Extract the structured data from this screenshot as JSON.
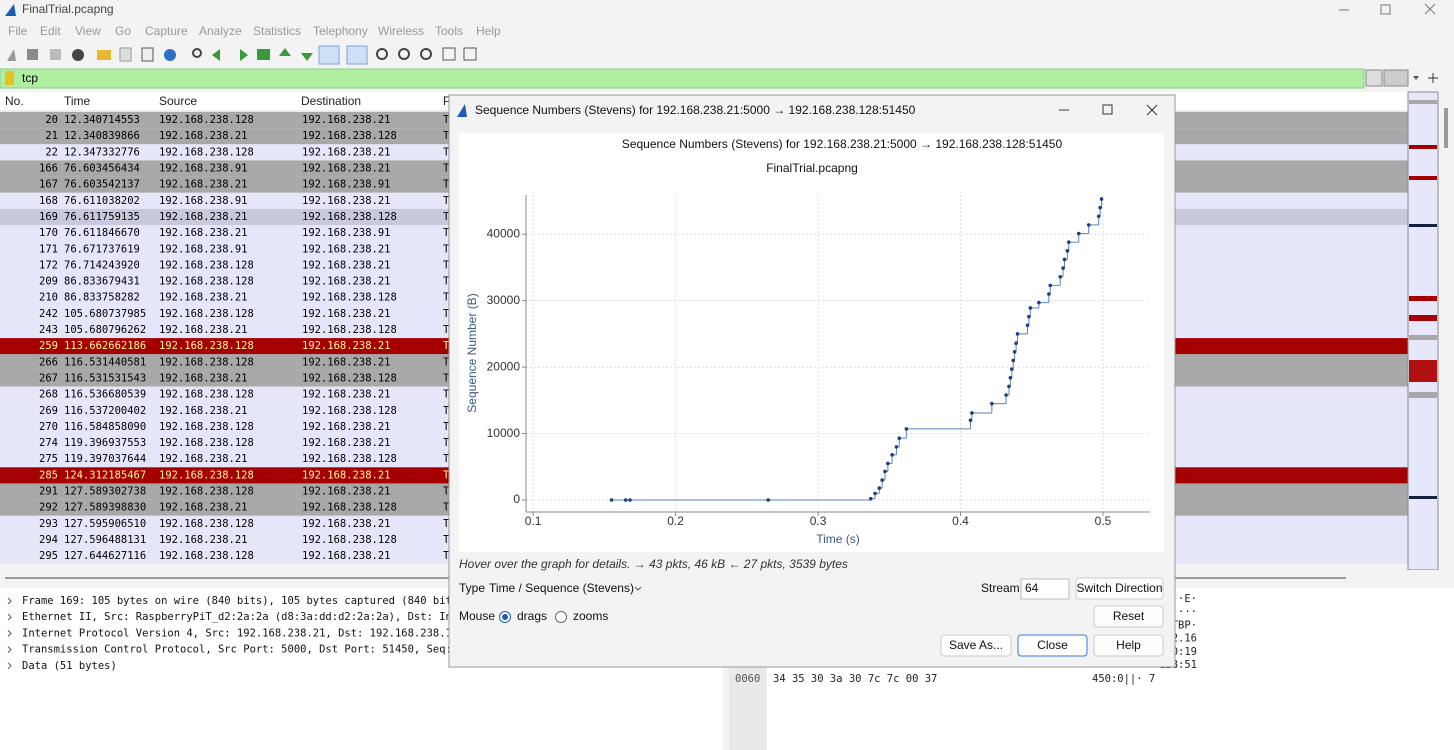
{
  "window": {
    "title": "FinalTrial.pcapng"
  },
  "menu": [
    "File",
    "Edit",
    "View",
    "Go",
    "Capture",
    "Analyze",
    "Statistics",
    "Telephony",
    "Wireless",
    "Tools",
    "Help"
  ],
  "filter": {
    "text": "tcp"
  },
  "packet_list": {
    "columns": [
      "No.",
      "Time",
      "Source",
      "Destination",
      "P"
    ],
    "row_styles": {
      "gray": {
        "color": "#a8a8a8",
        "text_color": "#000000"
      },
      "normal": {
        "color": "#e6e6fb",
        "text_color": "#000000"
      },
      "selected": {
        "color": "#c9c9dd",
        "text_color": "#000000"
      },
      "red": {
        "color": "#a40000",
        "text_color": "#fffc9c"
      }
    },
    "rows": [
      {
        "no": 20,
        "time": "12.340714553",
        "source": "192.168.238.128",
        "destination": "192.168.238.21",
        "protocol": "TCP",
        "style": "gray"
      },
      {
        "no": 21,
        "time": "12.340839866",
        "source": "192.168.238.21",
        "destination": "192.168.238.128",
        "protocol": "TCP",
        "style": "gray"
      },
      {
        "no": 22,
        "time": "12.347332776",
        "source": "192.168.238.128",
        "destination": "192.168.238.21",
        "protocol": "TCP",
        "style": "normal"
      },
      {
        "no": 166,
        "time": "76.603456434",
        "source": "192.168.238.91",
        "destination": "192.168.238.21",
        "protocol": "TCP",
        "style": "gray"
      },
      {
        "no": 167,
        "time": "76.603542137",
        "source": "192.168.238.21",
        "destination": "192.168.238.91",
        "protocol": "TCP",
        "style": "gray"
      },
      {
        "no": 168,
        "time": "76.611038202",
        "source": "192.168.238.91",
        "destination": "192.168.238.21",
        "protocol": "TCP",
        "style": "normal"
      },
      {
        "no": 169,
        "time": "76.611759135",
        "source": "192.168.238.21",
        "destination": "192.168.238.128",
        "protocol": "TCP",
        "style": "selected"
      },
      {
        "no": 170,
        "time": "76.611846670",
        "source": "192.168.238.21",
        "destination": "192.168.238.91",
        "protocol": "TCP",
        "style": "normal"
      },
      {
        "no": 171,
        "time": "76.671737619",
        "source": "192.168.238.91",
        "destination": "192.168.238.21",
        "protocol": "TCP",
        "style": "normal"
      },
      {
        "no": 172,
        "time": "76.714243920",
        "source": "192.168.238.128",
        "destination": "192.168.238.21",
        "protocol": "TCP",
        "style": "normal"
      },
      {
        "no": 209,
        "time": "86.833679431",
        "source": "192.168.238.128",
        "destination": "192.168.238.21",
        "protocol": "TCP",
        "style": "normal"
      },
      {
        "no": 210,
        "time": "86.833758282",
        "source": "192.168.238.21",
        "destination": "192.168.238.128",
        "protocol": "TCP",
        "style": "normal"
      },
      {
        "no": 242,
        "time": "105.680737985",
        "source": "192.168.238.128",
        "destination": "192.168.238.21",
        "protocol": "TCP",
        "style": "normal"
      },
      {
        "no": 243,
        "time": "105.680796262",
        "source": "192.168.238.21",
        "destination": "192.168.238.128",
        "protocol": "TCP",
        "style": "normal"
      },
      {
        "no": 259,
        "time": "113.662662186",
        "source": "192.168.238.128",
        "destination": "192.168.238.21",
        "protocol": "TCP",
        "style": "red"
      },
      {
        "no": 266,
        "time": "116.531440581",
        "source": "192.168.238.128",
        "destination": "192.168.238.21",
        "protocol": "TCP",
        "style": "gray"
      },
      {
        "no": 267,
        "time": "116.531531543",
        "source": "192.168.238.21",
        "destination": "192.168.238.128",
        "protocol": "TCP",
        "style": "gray"
      },
      {
        "no": 268,
        "time": "116.536680539",
        "source": "192.168.238.128",
        "destination": "192.168.238.21",
        "protocol": "TCP",
        "style": "normal"
      },
      {
        "no": 269,
        "time": "116.537200402",
        "source": "192.168.238.21",
        "destination": "192.168.238.128",
        "protocol": "TCP",
        "style": "normal"
      },
      {
        "no": 270,
        "time": "116.584858090",
        "source": "192.168.238.128",
        "destination": "192.168.238.21",
        "protocol": "TCP",
        "style": "normal"
      },
      {
        "no": 274,
        "time": "119.396937553",
        "source": "192.168.238.128",
        "destination": "192.168.238.21",
        "protocol": "TCP",
        "style": "normal"
      },
      {
        "no": 275,
        "time": "119.397037644",
        "source": "192.168.238.21",
        "destination": "192.168.238.128",
        "protocol": "TCP",
        "style": "normal"
      },
      {
        "no": 285,
        "time": "124.312185467",
        "source": "192.168.238.128",
        "destination": "192.168.238.21",
        "protocol": "TCP",
        "style": "red"
      },
      {
        "no": 291,
        "time": "127.589302738",
        "source": "192.168.238.128",
        "destination": "192.168.238.21",
        "protocol": "TCP",
        "style": "gray"
      },
      {
        "no": 292,
        "time": "127.589398830",
        "source": "192.168.238.21",
        "destination": "192.168.238.128",
        "protocol": "TCP",
        "style": "gray"
      },
      {
        "no": 293,
        "time": "127.595906510",
        "source": "192.168.238.128",
        "destination": "192.168.238.21",
        "protocol": "TCP",
        "style": "normal"
      },
      {
        "no": 294,
        "time": "127.596488131",
        "source": "192.168.238.21",
        "destination": "192.168.238.128",
        "protocol": "TCP",
        "style": "normal"
      },
      {
        "no": 295,
        "time": "127.644627116",
        "source": "192.168.238.128",
        "destination": "192.168.238.21",
        "protocol": "TCP",
        "style": "normal"
      }
    ]
  },
  "details": [
    "Frame 169: 105 bytes on wire (840 bits), 105 bytes captured (840 bits)",
    "Ethernet II, Src: RaspberryPiT_d2:2a:2a (d8:3a:dd:d2:2a:2a), Dst: Intel",
    "Internet Protocol Version 4, Src: 192.168.238.21, Dst: 192.168.238.128",
    "Transmission Control Protocol, Src Port: 5000, Dst Port: 51450, Seq:",
    "Data (51 bytes)"
  ],
  "hex": {
    "ascii_fragments": [
      "·E·",
      "····",
      "·TBP·",
      "2.16",
      "0:19",
      "128:51"
    ],
    "last_row": {
      "offset": "0060",
      "bytes": "34 35 30 3a 30 7c 7c 00  37",
      "ascii": "450:0||· 7"
    }
  },
  "dialog": {
    "title": "Sequence Numbers (Stevens) for 192.168.238.21:5000 → 192.168.238.128:51450",
    "hint": "Hover over the graph for details. → 43 pkts, 46 kB ← 27 pkts, 3539 bytes",
    "type_label": "Type",
    "type_value": "Time / Sequence (Stevens)",
    "stream_label": "Stream",
    "stream_value": 64,
    "mouse_label": "Mouse",
    "mouse_options": [
      "drags",
      "zooms"
    ],
    "mouse_selected": 0,
    "buttons": {
      "switch": "Switch Direction",
      "reset": "Reset",
      "save": "Save As...",
      "close": "Close",
      "help": "Help"
    }
  },
  "chart_data": {
    "type": "step",
    "title": "Sequence Numbers (Stevens) for 192.168.238.21:5000 → 192.168.238.128:51450",
    "subtitle": "FinalTrial.pcapng",
    "x_label": "Time (s)",
    "y_label": "Sequence Number (B)",
    "x": [
      0.155,
      0.165,
      0.168,
      0.265,
      0.337,
      0.34,
      0.343,
      0.345,
      0.347,
      0.349,
      0.352,
      0.355,
      0.357,
      0.362,
      0.407,
      0.408,
      0.422,
      0.432,
      0.434,
      0.435,
      0.436,
      0.437,
      0.438,
      0.439,
      0.44,
      0.447,
      0.448,
      0.449,
      0.455,
      0.462,
      0.463,
      0.47,
      0.472,
      0.473,
      0.475,
      0.476,
      0.483,
      0.49,
      0.497,
      0.498,
      0.499
    ],
    "values": [
      0,
      0,
      0,
      0,
      200,
      1000,
      1800,
      3000,
      4300,
      5500,
      6800,
      8000,
      9300,
      10700,
      12000,
      13100,
      14500,
      15800,
      17100,
      18400,
      19700,
      21000,
      22300,
      23600,
      25000,
      26300,
      27600,
      28900,
      29700,
      31000,
      32300,
      33600,
      34900,
      36200,
      37500,
      38800,
      40100,
      41400,
      42700,
      44000,
      45300
    ],
    "xlim": [
      0.095,
      0.533
    ],
    "ylim": [
      -1800,
      45900
    ],
    "xticks": [
      0.1,
      0.2,
      0.3,
      0.4,
      0.5
    ],
    "yticks": [
      0,
      10000,
      20000,
      30000,
      40000
    ],
    "grid": true,
    "color": "#1f3f80",
    "line_color": "#5a86b8"
  }
}
